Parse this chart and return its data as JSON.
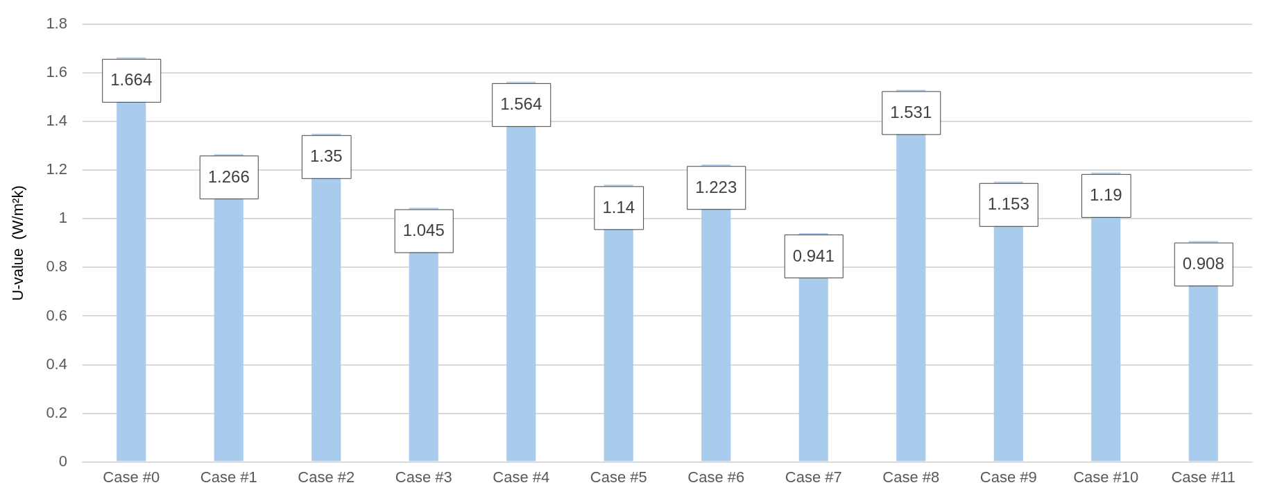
{
  "chart_data": {
    "type": "bar",
    "ylabel": "U-value  (W/m²k)",
    "categories": [
      "Case #0",
      "Case #1",
      "Case #2",
      "Case #3",
      "Case #4",
      "Case #5",
      "Case #6",
      "Case #7",
      "Case #8",
      "Case #9",
      "Case #10",
      "Case #11"
    ],
    "values": [
      1.664,
      1.266,
      1.35,
      1.045,
      1.564,
      1.14,
      1.223,
      0.941,
      1.531,
      1.153,
      1.19,
      0.908
    ],
    "color": "#a9cbec",
    "ylim": [
      0,
      1.8
    ],
    "yticks": [
      0,
      0.2,
      0.4,
      0.6,
      0.8,
      1,
      1.2,
      1.4,
      1.6,
      1.8
    ],
    "grid": "y",
    "data_labels": true,
    "legend": false
  }
}
